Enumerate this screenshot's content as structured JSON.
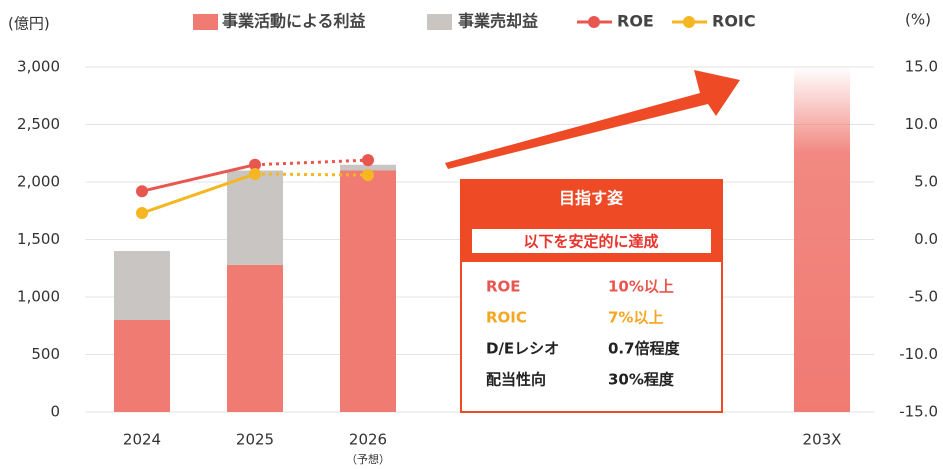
{
  "chart_data": {
    "type": "bar",
    "y_axis_title": "(億円)",
    "y2_axis_title": "(%)",
    "categories": [
      "2024",
      "2025",
      "2026",
      "203X"
    ],
    "category_notes": [
      null,
      null,
      "（予想）",
      null
    ],
    "ylim": [
      0,
      3000
    ],
    "yticks": [
      0,
      500,
      {
        "value": 1000,
        "label": "1,000"
      },
      {
        "value": 1500,
        "label": "1,500"
      },
      {
        "value": 2000,
        "label": "2,000"
      },
      {
        "value": 2500,
        "label": "2,500"
      },
      {
        "value": 3000,
        "label": "3,000"
      }
    ],
    "y2lim": [
      -15,
      15
    ],
    "y2ticks": [
      {
        "value": -15,
        "label": "-15.0"
      },
      {
        "value": -10,
        "label": "-10.0"
      },
      {
        "value": -5,
        "label": "-5.0"
      },
      {
        "value": 0,
        "label": "0.0"
      },
      {
        "value": 5,
        "label": "5.0"
      },
      {
        "value": 10,
        "label": "10.0"
      },
      {
        "value": 15,
        "label": "15.0"
      }
    ],
    "grid": true,
    "fade_index": 3,
    "dotted_from": 2,
    "series": [
      {
        "name": "事業活動による利益",
        "type": "bar",
        "color": "#f07b73",
        "values": [
          800,
          1280,
          2100,
          3000
        ]
      },
      {
        "name": "事業売却益",
        "type": "bar",
        "color": "#c9c5c2",
        "values": [
          600,
          820,
          50,
          null
        ]
      },
      {
        "name": "ROE",
        "type": "line",
        "axis": "y2",
        "color": "#e8574f",
        "values": [
          4.2,
          6.5,
          6.9,
          null
        ]
      },
      {
        "name": "ROIC",
        "type": "line",
        "axis": "y2",
        "color": "#f5b622",
        "values": [
          2.3,
          5.7,
          5.6,
          null
        ]
      }
    ]
  },
  "target_box": {
    "title": "目指す姿",
    "subtitle": "以下を安定的に達成",
    "rows": [
      [
        "ROE",
        "10%以上"
      ],
      [
        "ROIC",
        "7%以上"
      ],
      [
        "D/Eレシオ",
        "0.7倍程度"
      ],
      [
        "配当性向",
        "30%程度"
      ]
    ],
    "row_colors": [
      "#e8574f",
      "#f5a623",
      "#222",
      "#222"
    ]
  }
}
